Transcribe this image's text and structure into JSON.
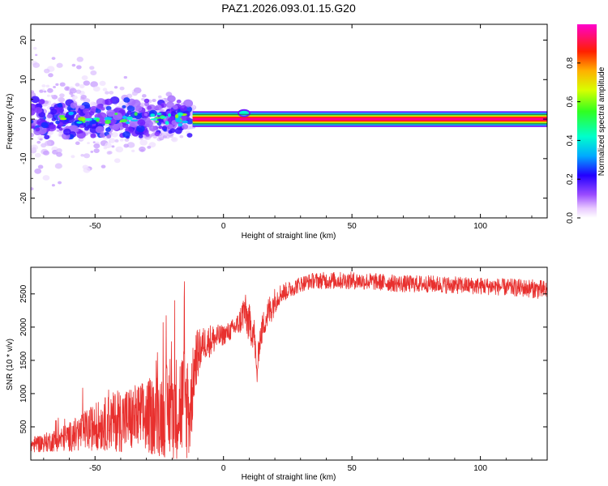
{
  "title": "PAZ1.2026.093.01.15.G20",
  "chart_data": [
    {
      "type": "heatmap",
      "name": "spectrogram",
      "xlabel": "Height of straight line (km)",
      "ylabel": "Frequency (Hz)",
      "xlim": [
        -75,
        126
      ],
      "ylim": [
        -25,
        24
      ],
      "xticks": [
        -50,
        0,
        50,
        100
      ],
      "yticks": [
        -20,
        -10,
        0,
        10,
        20
      ],
      "line_band": {
        "x_start": -12,
        "x_end": 126,
        "freq_center": 0.0,
        "freq_halfwidth": 1.0,
        "value": 0.85
      },
      "colorbar": {
        "label": "Normalized spectral amplitude",
        "range": [
          0.0,
          1.0
        ],
        "ticks": [
          0.0,
          0.2,
          0.4,
          0.6,
          0.8
        ],
        "tick_labels": [
          "0.0",
          "0.2",
          "0.4",
          "0.6",
          "0.8"
        ]
      }
    },
    {
      "type": "line",
      "name": "snr",
      "xlabel": "Height of straight line (km)",
      "ylabel": "SNR (10 * v/v)",
      "xlim": [
        -75,
        126
      ],
      "ylim": [
        0,
        2900
      ],
      "xticks": [
        -50,
        0,
        50,
        100
      ],
      "yticks": [
        500,
        1000,
        1500,
        2000,
        2500
      ],
      "color": "#e8302e",
      "series": [
        {
          "name": "SNR",
          "x": [
            -75,
            -70,
            -65,
            -60,
            -55,
            -50,
            -45,
            -40,
            -35,
            -30,
            -25,
            -20,
            -15,
            -13,
            -11,
            -8,
            -5,
            0,
            3,
            6,
            8,
            10,
            12,
            13,
            14,
            16,
            18,
            20,
            22,
            25,
            30,
            35,
            40,
            50,
            60,
            70,
            80,
            90,
            100,
            110,
            120,
            126
          ],
          "mean": [
            230,
            260,
            300,
            350,
            420,
            500,
            560,
            600,
            620,
            640,
            700,
            760,
            880,
            700,
            1500,
            1750,
            1800,
            1880,
            1950,
            2050,
            2250,
            2050,
            1900,
            1250,
            1800,
            2100,
            2250,
            2400,
            2500,
            2550,
            2650,
            2700,
            2700,
            2700,
            2680,
            2650,
            2650,
            2630,
            2620,
            2600,
            2580,
            2550
          ],
          "spread": [
            120,
            140,
            170,
            220,
            300,
            350,
            420,
            480,
            520,
            560,
            650,
            750,
            900,
            700,
            450,
            250,
            250,
            150,
            150,
            180,
            300,
            300,
            250,
            200,
            220,
            220,
            250,
            200,
            150,
            130,
            120,
            120,
            130,
            130,
            130,
            130,
            130,
            130,
            130,
            130,
            140,
            150
          ]
        }
      ]
    }
  ]
}
